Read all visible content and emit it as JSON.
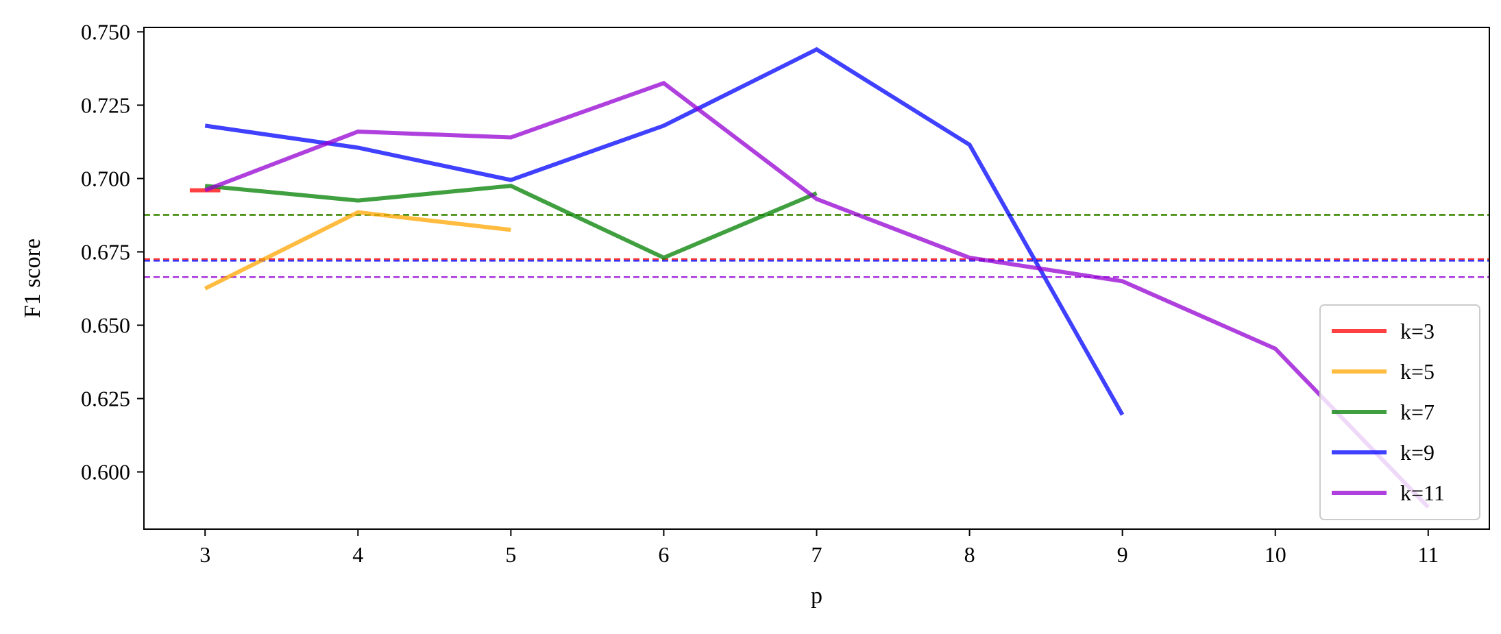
{
  "chart_data": {
    "type": "line",
    "title": "",
    "xlabel": "p",
    "ylabel": "F1 score",
    "xlim": [
      2.6,
      11.4
    ],
    "ylim": [
      0.5805,
      0.7515
    ],
    "xticks": [
      3,
      4,
      5,
      6,
      7,
      8,
      9,
      10,
      11
    ],
    "xtick_labels": [
      "3",
      "4",
      "5",
      "6",
      "7",
      "8",
      "9",
      "10",
      "11"
    ],
    "yticks": [
      0.6,
      0.625,
      0.65,
      0.675,
      0.7,
      0.725,
      0.75
    ],
    "ytick_labels": [
      "0.600",
      "0.625",
      "0.650",
      "0.675",
      "0.700",
      "0.725",
      "0.750"
    ],
    "grid": false,
    "legend_position": "lower-right",
    "series": [
      {
        "name": "k=3",
        "color": "#ff0000",
        "baseline": 0.6725,
        "points": [
          {
            "x": 2.9,
            "y": 0.696
          },
          {
            "x": 3.1,
            "y": 0.696
          }
        ]
      },
      {
        "name": "k=5",
        "color": "#ffa500",
        "baseline": 0.6876,
        "points": [
          {
            "x": 3,
            "y": 0.6625
          },
          {
            "x": 4,
            "y": 0.6885
          },
          {
            "x": 5,
            "y": 0.6825
          }
        ]
      },
      {
        "name": "k=7",
        "color": "#008000",
        "baseline": 0.6876,
        "points": [
          {
            "x": 3,
            "y": 0.6975
          },
          {
            "x": 4,
            "y": 0.6925
          },
          {
            "x": 5,
            "y": 0.6975
          },
          {
            "x": 6,
            "y": 0.673
          },
          {
            "x": 7,
            "y": 0.695
          }
        ]
      },
      {
        "name": "k=9",
        "color": "#0000ff",
        "baseline": 0.672,
        "points": [
          {
            "x": 3,
            "y": 0.718
          },
          {
            "x": 4,
            "y": 0.7105
          },
          {
            "x": 5,
            "y": 0.6995
          },
          {
            "x": 6,
            "y": 0.718
          },
          {
            "x": 7,
            "y": 0.744
          },
          {
            "x": 8,
            "y": 0.7115
          },
          {
            "x": 9,
            "y": 0.6195
          }
        ]
      },
      {
        "name": "k=11",
        "color": "#9400d3",
        "baseline": 0.6664,
        "points": [
          {
            "x": 3,
            "y": 0.696
          },
          {
            "x": 4,
            "y": 0.716
          },
          {
            "x": 5,
            "y": 0.714
          },
          {
            "x": 6,
            "y": 0.7325
          },
          {
            "x": 7,
            "y": 0.693
          },
          {
            "x": 8,
            "y": 0.673
          },
          {
            "x": 9,
            "y": 0.665
          },
          {
            "x": 10,
            "y": 0.642
          },
          {
            "x": 11,
            "y": 0.588
          }
        ]
      }
    ]
  }
}
